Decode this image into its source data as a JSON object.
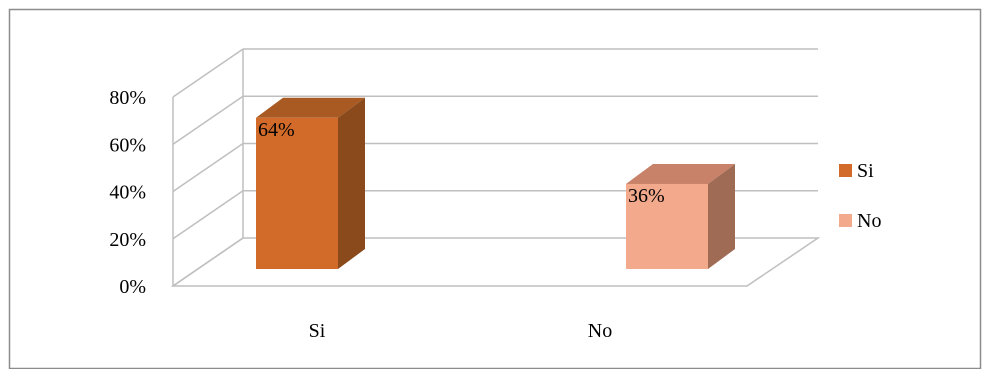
{
  "chart_data": {
    "type": "bar",
    "three_d": true,
    "categories": [
      "Si",
      "No"
    ],
    "values": [
      64,
      36
    ],
    "data_labels": [
      "64%",
      "36%"
    ],
    "ylim": [
      0,
      80
    ],
    "yticks": [
      0,
      20,
      40,
      60,
      80
    ],
    "ytick_labels": [
      "0%",
      "20%",
      "40%",
      "60%",
      "80%"
    ],
    "grid": true,
    "legend": {
      "placement": "right",
      "entries": [
        {
          "label": "Si",
          "color": "#d26b2a"
        },
        {
          "label": "No",
          "color": "#f2a98c"
        }
      ]
    },
    "colors": {
      "Si": {
        "front": "#d26b2a",
        "side": "#8a4a1c",
        "top": "#a85a22"
      },
      "No": {
        "front": "#f2a98c",
        "side": "#a06b55",
        "top": "#c78269"
      }
    }
  }
}
